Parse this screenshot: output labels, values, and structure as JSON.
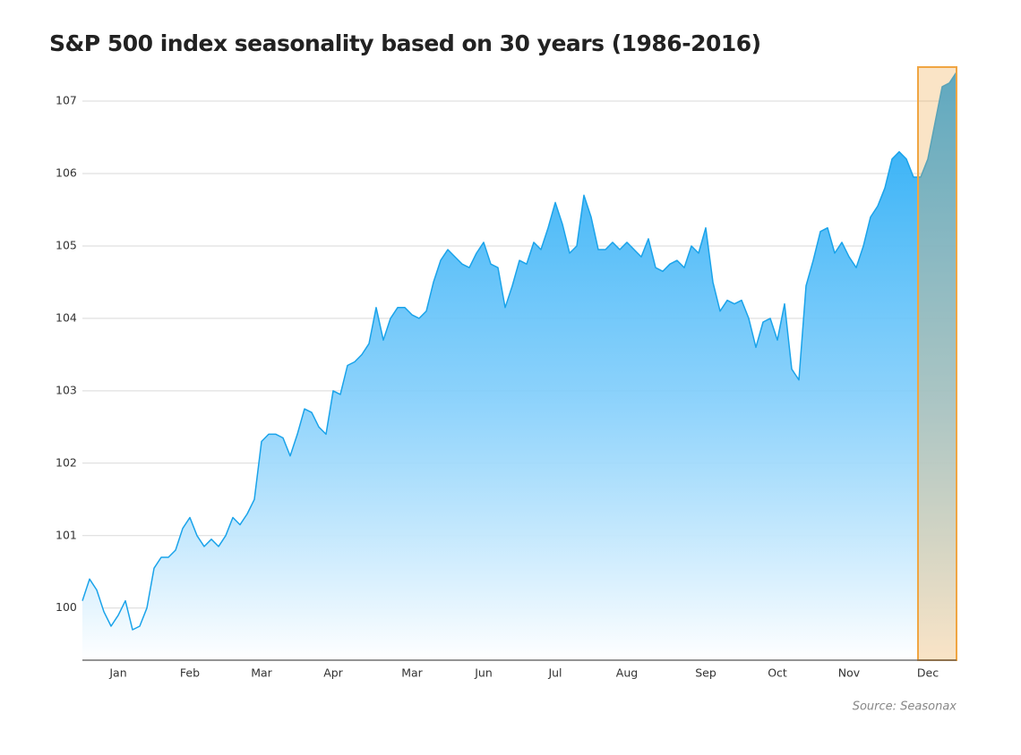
{
  "chart_data": {
    "type": "area",
    "title": "S&P 500 index seasonality based on 30 years (1986-2016)",
    "source": "Source: Seasonax",
    "color": "#1aa3ea",
    "highlight_color": "#f0a542",
    "grid": true,
    "ylim": [
      99.28,
      107.47
    ],
    "yticks": [
      100,
      101,
      102,
      103,
      104,
      105,
      106,
      107
    ],
    "categories": [
      null,
      null,
      null,
      null,
      null,
      "Jan",
      null,
      null,
      null,
      null,
      null,
      null,
      null,
      null,
      null,
      "Feb",
      null,
      null,
      null,
      null,
      null,
      null,
      null,
      null,
      null,
      "Mar",
      null,
      null,
      null,
      null,
      null,
      null,
      null,
      null,
      null,
      "Apr",
      null,
      null,
      null,
      null,
      null,
      null,
      null,
      null,
      null,
      null,
      "Mar",
      null,
      null,
      null,
      null,
      null,
      null,
      null,
      null,
      null,
      "Jun",
      null,
      null,
      null,
      null,
      null,
      null,
      null,
      null,
      null,
      "Jul",
      null,
      null,
      null,
      null,
      null,
      null,
      null,
      null,
      null,
      "Aug",
      null,
      null,
      null,
      null,
      null,
      null,
      null,
      null,
      null,
      null,
      "Sep",
      null,
      null,
      null,
      null,
      null,
      null,
      null,
      null,
      null,
      "Oct",
      null,
      null,
      null,
      null,
      null,
      null,
      null,
      null,
      null,
      "Nov",
      null,
      null,
      null,
      null,
      null,
      null,
      null,
      null,
      null,
      null,
      "Dec",
      null,
      null,
      null,
      null
    ],
    "values": [
      100.1,
      100.4,
      100.25,
      99.95,
      99.75,
      99.9,
      100.1,
      99.7,
      99.75,
      100.0,
      100.55,
      100.7,
      100.7,
      100.8,
      101.1,
      101.25,
      101.0,
      100.85,
      100.95,
      100.85,
      101.0,
      101.25,
      101.15,
      101.3,
      101.5,
      102.3,
      102.4,
      102.4,
      102.35,
      102.1,
      102.4,
      102.75,
      102.7,
      102.5,
      102.4,
      103.0,
      102.95,
      103.35,
      103.4,
      103.5,
      103.65,
      104.15,
      103.7,
      104.0,
      104.15,
      104.15,
      104.05,
      104.0,
      104.1,
      104.5,
      104.8,
      104.95,
      104.85,
      104.75,
      104.7,
      104.9,
      105.05,
      104.75,
      104.7,
      104.15,
      104.45,
      104.8,
      104.75,
      105.05,
      104.95,
      105.25,
      105.6,
      105.3,
      104.9,
      105.0,
      105.7,
      105.4,
      104.95,
      104.95,
      105.05,
      104.95,
      105.05,
      104.95,
      104.85,
      105.1,
      104.7,
      104.65,
      104.75,
      104.8,
      104.7,
      105.0,
      104.9,
      105.25,
      104.5,
      104.1,
      104.25,
      104.2,
      104.25,
      104.0,
      103.6,
      103.95,
      104.0,
      103.7,
      104.2,
      103.3,
      103.15,
      104.45,
      104.8,
      105.2,
      105.25,
      104.9,
      105.05,
      104.85,
      104.7,
      105.0,
      105.4,
      105.55,
      105.8,
      106.2,
      106.3,
      106.2,
      105.95,
      105.95,
      106.2,
      106.7,
      107.2,
      107.25,
      107.4
    ]
  }
}
